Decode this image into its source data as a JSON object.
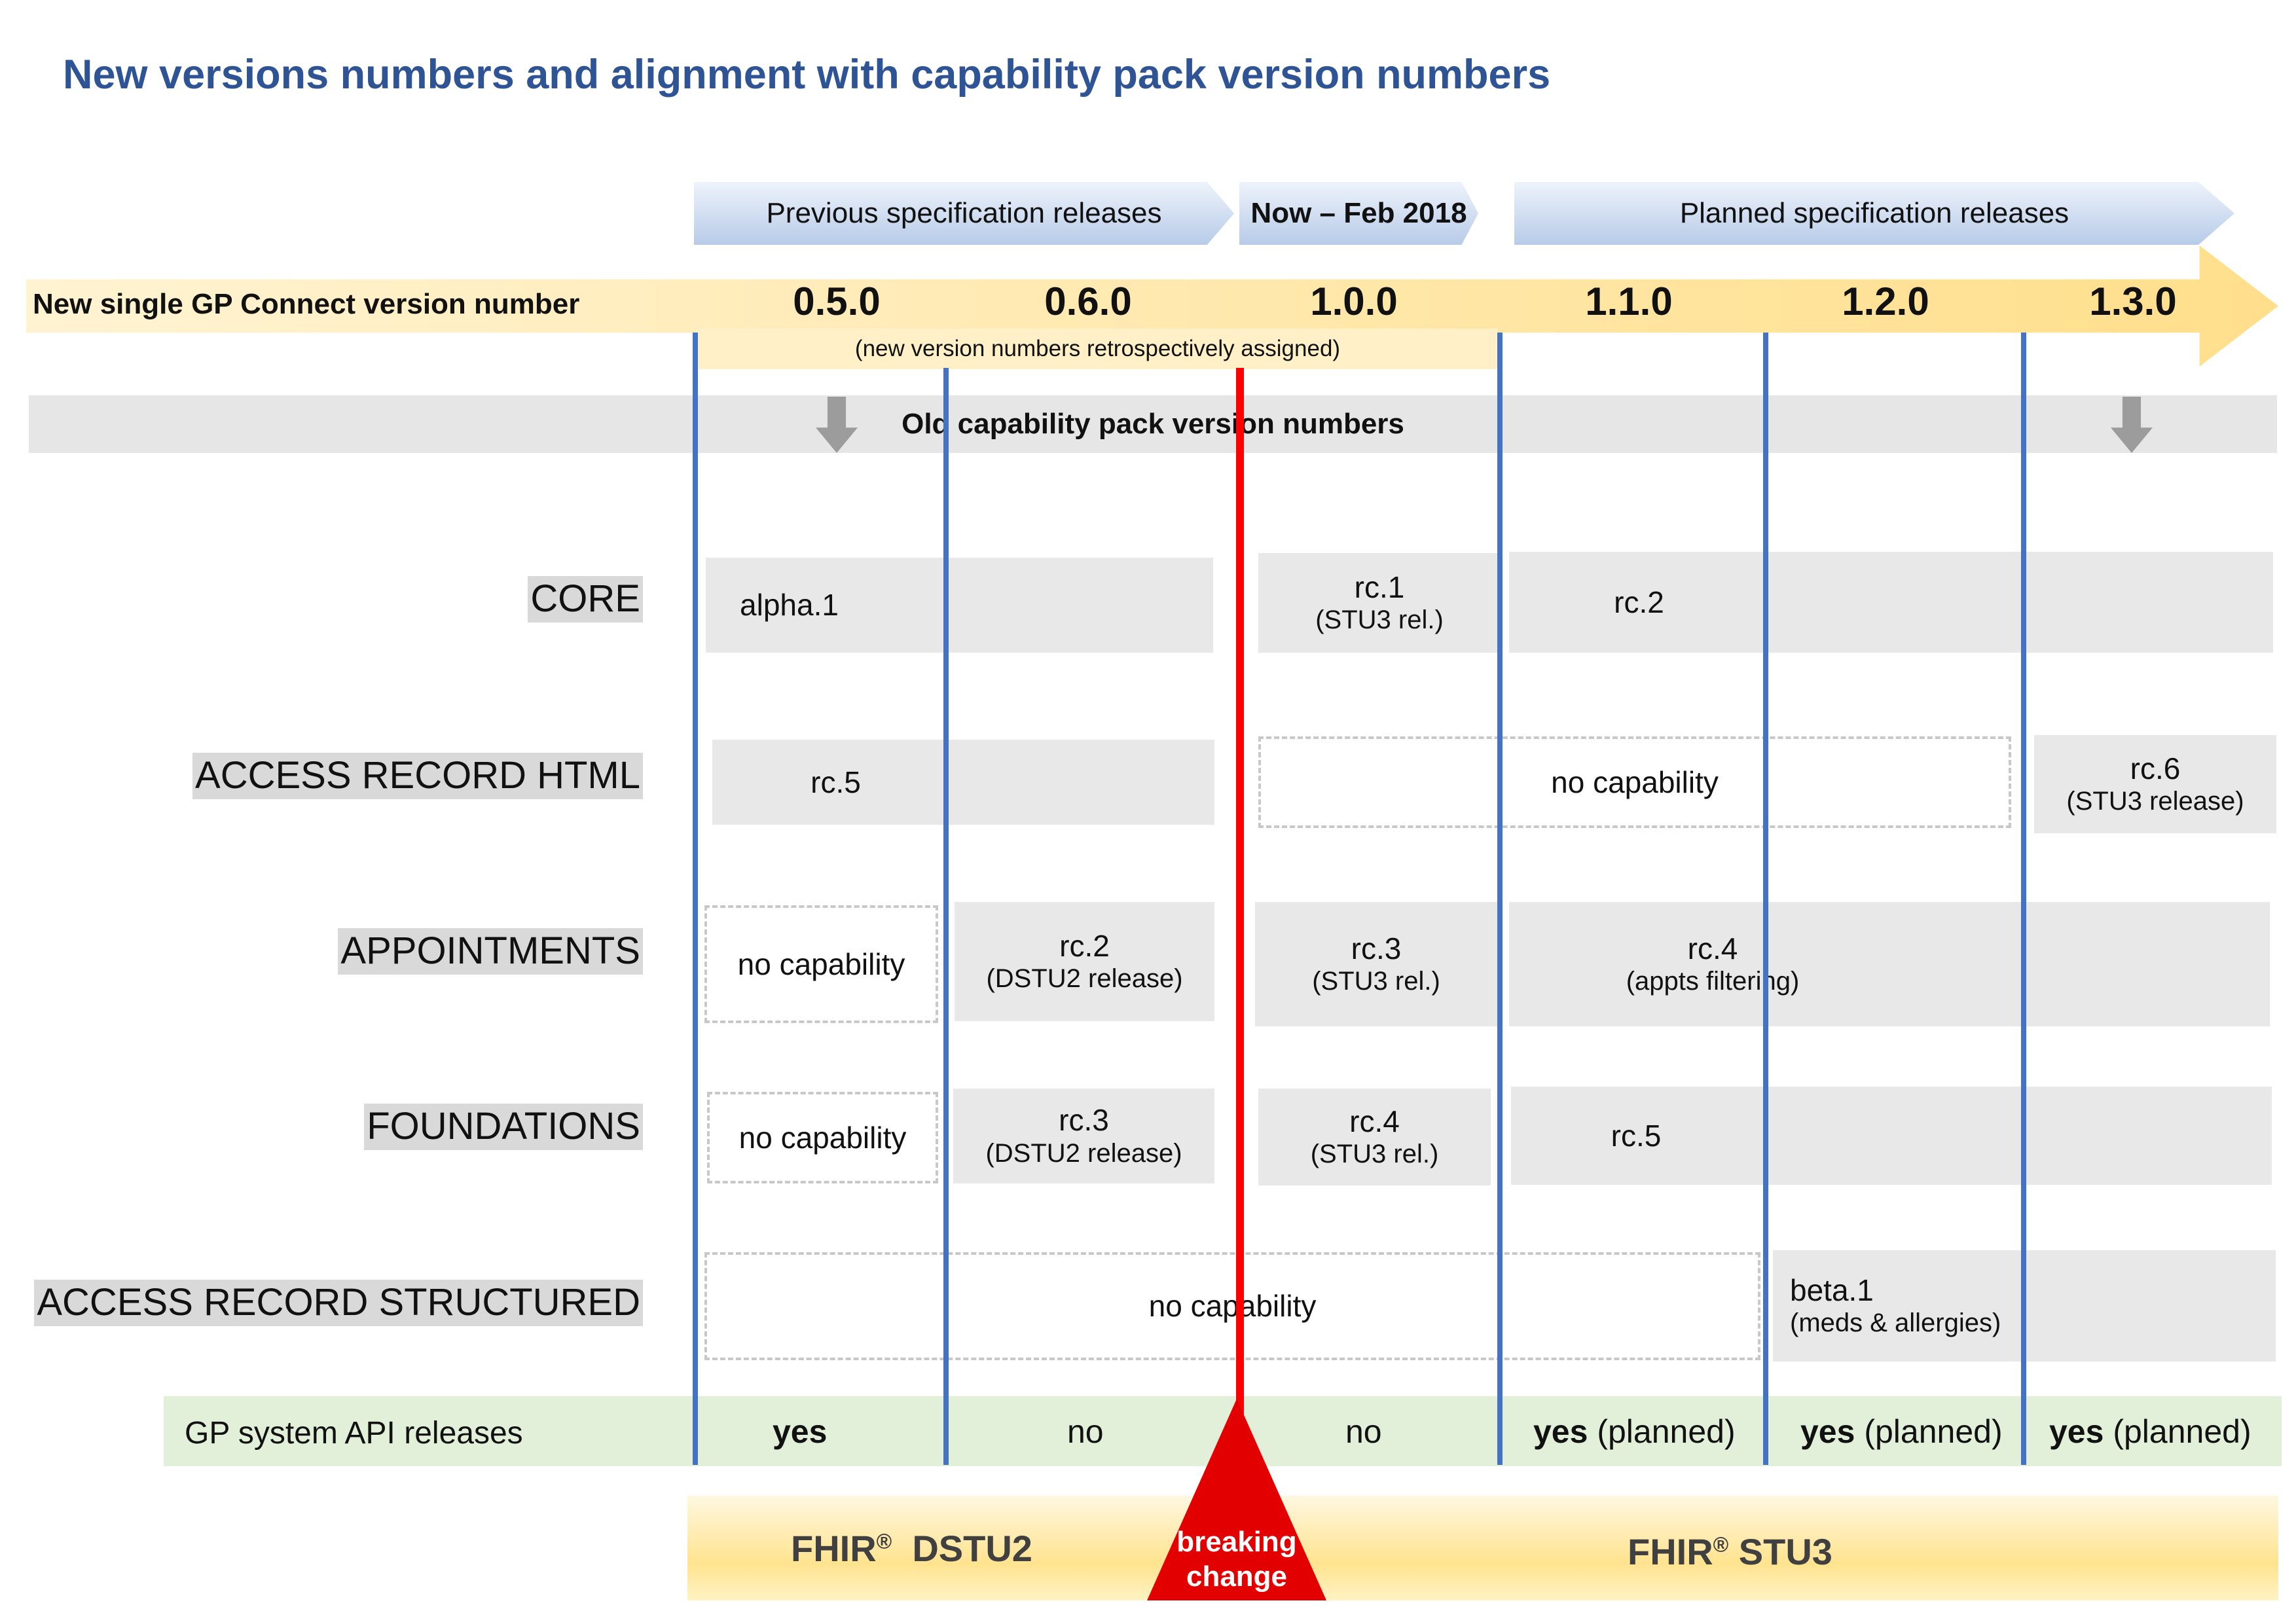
{
  "title": "New versions numbers and alignment with capability pack version numbers",
  "phases": {
    "previous": "Previous specification releases",
    "now": "Now – Feb 2018",
    "planned": "Planned specification releases"
  },
  "version_banner": {
    "label": "New single GP Connect version number",
    "versions": [
      "0.5.0",
      "0.6.0",
      "1.0.0",
      "1.1.0",
      "1.2.0",
      "1.3.0"
    ],
    "retro_note": "(new version numbers retrospectively assigned)"
  },
  "old_band_label": "Old capability pack version numbers",
  "rows": {
    "core": {
      "label": "CORE",
      "c1": "alpha.1",
      "c2_main": "rc.1",
      "c2_sub": "(STU3 rel.)",
      "c3": "rc.2"
    },
    "html": {
      "label": "ACCESS RECORD HTML",
      "c1": "rc.5",
      "none": "no capability",
      "c3_main": "rc.6",
      "c3_sub": "(STU3 release)"
    },
    "appointments": {
      "label": "APPOINTMENTS",
      "none": "no capability",
      "c2_main": "rc.2",
      "c2_sub": "(DSTU2 release)",
      "c3_main": "rc.3",
      "c3_sub": "(STU3 rel.)",
      "c4_main": "rc.4",
      "c4_sub": "(appts filtering)"
    },
    "foundations": {
      "label": "FOUNDATIONS",
      "none": "no capability",
      "c2_main": "rc.3",
      "c2_sub": "(DSTU2 release)",
      "c3_main": "rc.4",
      "c3_sub": "(STU3 rel.)",
      "c4": "rc.5"
    },
    "structured": {
      "label": "ACCESS RECORD STRUCTURED",
      "none": "no capability",
      "c2_main": "beta.1",
      "c2_sub": "(meds & allergies)"
    }
  },
  "api_releases": {
    "label": "GP system API releases",
    "yes": "yes",
    "no": "no",
    "planned": "(planned)"
  },
  "fhir": {
    "dstu2_prefix": "FHIR",
    "dstu2_reg": "®",
    "dstu2_suffix": "DSTU2",
    "stu3_prefix": "FHIR",
    "stu3_reg": "®",
    "stu3_suffix": "STU3",
    "breaking_line1": "breaking",
    "breaking_line2": "change"
  },
  "colors": {
    "title": "#2f5496",
    "version_line": "#4472c4",
    "breaking_line": "#ff0000",
    "api_band": "#e2efd9",
    "banner": "#ffdf8c"
  }
}
